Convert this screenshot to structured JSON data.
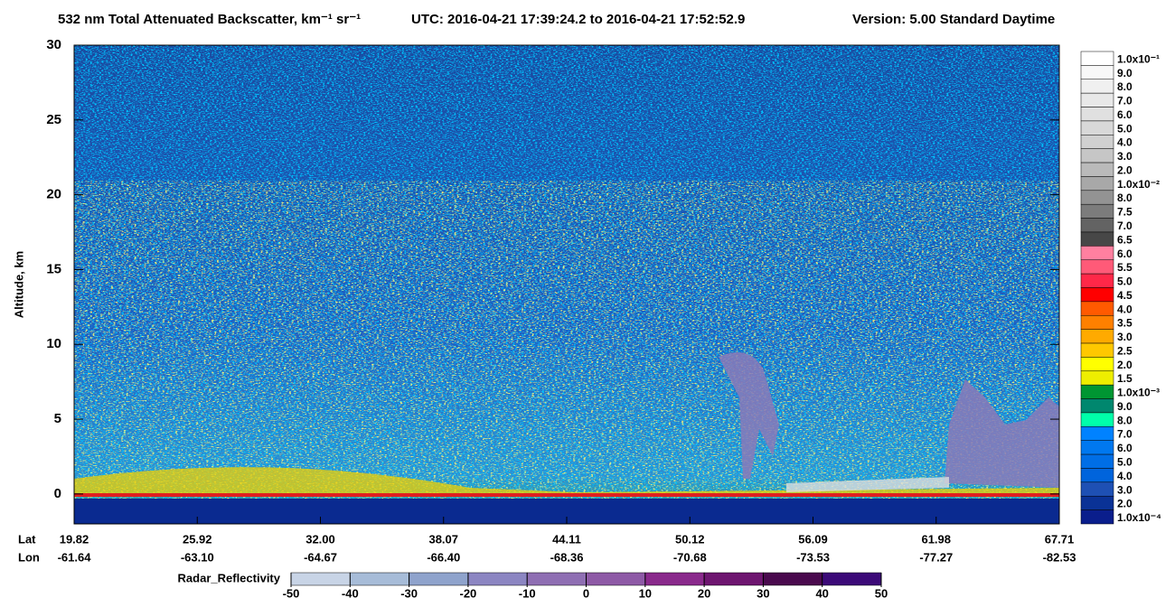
{
  "chart_data": {
    "type": "heatmap",
    "title": "532 nm Total Attenuated Backscatter, km⁻¹ sr⁻¹",
    "subtitle": "UTC:  2016-04-21 17:39:24.2  to  2016-04-21 17:52:52.9",
    "version": "Version: 5.00  Standard  Daytime",
    "ylabel": "Altitude, km",
    "ylim": [
      -2,
      30
    ],
    "yticks": [
      0,
      5,
      10,
      15,
      20,
      25,
      30
    ],
    "x_row_labels": [
      "Lat",
      "Lon"
    ],
    "lat": [
      19.82,
      25.92,
      {
        "value": 32,
        "label": "32.00"
      },
      38.07,
      44.11,
      50.12,
      56.09,
      61.98,
      67.71
    ],
    "lon": [
      -61.64,
      -63.1,
      -64.67,
      -66.4,
      -68.36,
      -70.68,
      -73.53,
      -77.27,
      -82.53
    ],
    "lon_labels": [
      "-61.64",
      "-63.10",
      "-64.67",
      "-66.40",
      "-68.36",
      "-70.68",
      "-73.53",
      "-77.27",
      "-82.53"
    ],
    "colorbar": {
      "labels": [
        "1.0x10⁻¹",
        "9.0",
        "8.0",
        "7.0",
        "6.0",
        "5.0",
        "4.0",
        "3.0",
        "2.0",
        "1.0x10⁻²",
        "8.0",
        "7.5",
        "7.0",
        "6.5",
        "6.0",
        "5.5",
        "5.0",
        "4.5",
        "4.0",
        "3.5",
        "3.0",
        "2.5",
        "2.0",
        "1.5",
        "1.0x10⁻³",
        "9.0",
        "8.0",
        "7.0",
        "6.0",
        "5.0",
        "4.0",
        "3.0",
        "2.0",
        "1.0x10⁻⁴"
      ],
      "colors": [
        "#ffffff",
        "#f8f8f8",
        "#f0f0f0",
        "#e8e8e8",
        "#e0e0e0",
        "#d8d8d8",
        "#d0d0d0",
        "#c6c6c6",
        "#bababa",
        "#a8a8a8",
        "#939393",
        "#7c7c7c",
        "#636363",
        "#474747",
        "#ff80a0",
        "#ff5a78",
        "#ff2848",
        "#ff0000",
        "#ff5a00",
        "#ff8000",
        "#ffaa00",
        "#ffc800",
        "#ffff00",
        "#eeee00",
        "#009632",
        "#00876e",
        "#00ffaa",
        "#0082ff",
        "#0078f0",
        "#006ee6",
        "#0064dc",
        "#1e50b4",
        "#0a3296",
        "#0a1e8c"
      ]
    },
    "radar": {
      "label": "Radar_Reflectivity",
      "lim": [
        -50,
        50
      ],
      "ticks": [
        -50,
        -40,
        -30,
        -20,
        -10,
        0,
        10,
        20,
        30,
        40,
        50
      ],
      "colors": [
        "#c8d4e6",
        "#a7bcd8",
        "#8fa3cc",
        "#8c86c2",
        "#8f6fb3",
        "#8e5aa6",
        "#8a2a8c",
        "#6e1670",
        "#4a0a4e",
        "#3c0a78"
      ]
    }
  }
}
